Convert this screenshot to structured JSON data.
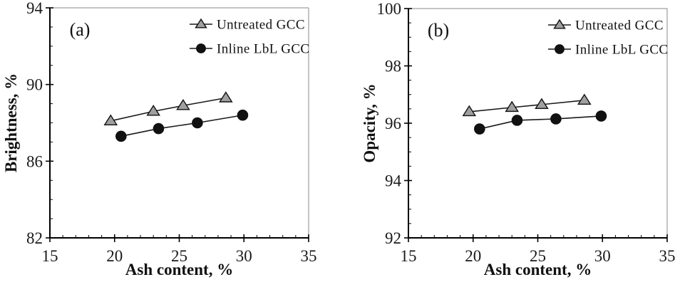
{
  "figure": {
    "background": "#ffffff",
    "axis_color": "#000000",
    "box_color": "#8a8a8a",
    "line_color": "#1a1a1a"
  },
  "chart_data": [
    {
      "type": "line",
      "panel_label": "(a)",
      "xlabel": "Ash content, %",
      "ylabel": "Brightness, %",
      "xlim": [
        15,
        35
      ],
      "ylim": [
        82,
        94
      ],
      "xticks": [
        15,
        20,
        25,
        30,
        35
      ],
      "yticks": [
        82,
        86,
        90,
        94
      ],
      "x_minor_step": 1,
      "y_minor_step": 1,
      "grid": false,
      "legend_position": "top-right",
      "series": [
        {
          "name": "Untreated GCC",
          "marker": "triangle",
          "marker_fill": "#a0a0a0",
          "marker_edge": "#111111",
          "stroke": "#1a1a1a",
          "points": [
            [
              19.7,
              88.1
            ],
            [
              23.0,
              88.6
            ],
            [
              25.3,
              88.9
            ],
            [
              28.6,
              89.3
            ]
          ]
        },
        {
          "name": "Inline LbL GCC",
          "marker": "circle",
          "marker_fill": "#111111",
          "marker_edge": "#111111",
          "stroke": "#1a1a1a",
          "points": [
            [
              20.5,
              87.3
            ],
            [
              23.4,
              87.7
            ],
            [
              26.4,
              88.0
            ],
            [
              29.9,
              88.4
            ]
          ]
        }
      ]
    },
    {
      "type": "line",
      "panel_label": "(b)",
      "xlabel": "Ash content, %",
      "ylabel": "Opacity, %",
      "xlim": [
        15,
        35
      ],
      "ylim": [
        92,
        100
      ],
      "xticks": [
        15,
        20,
        25,
        30,
        35
      ],
      "yticks": [
        92,
        94,
        96,
        98,
        100
      ],
      "x_minor_step": 1,
      "y_minor_step": 0.5,
      "grid": false,
      "legend_position": "top-right",
      "series": [
        {
          "name": "Untreated GCC",
          "marker": "triangle",
          "marker_fill": "#a0a0a0",
          "marker_edge": "#111111",
          "stroke": "#1a1a1a",
          "points": [
            [
              19.7,
              96.4
            ],
            [
              23.0,
              96.55
            ],
            [
              25.3,
              96.65
            ],
            [
              28.6,
              96.8
            ]
          ]
        },
        {
          "name": "Inline LbL GCC",
          "marker": "circle",
          "marker_fill": "#111111",
          "marker_edge": "#111111",
          "stroke": "#1a1a1a",
          "points": [
            [
              20.5,
              95.8
            ],
            [
              23.4,
              96.1
            ],
            [
              26.4,
              96.15
            ],
            [
              29.9,
              96.25
            ]
          ]
        }
      ]
    }
  ]
}
